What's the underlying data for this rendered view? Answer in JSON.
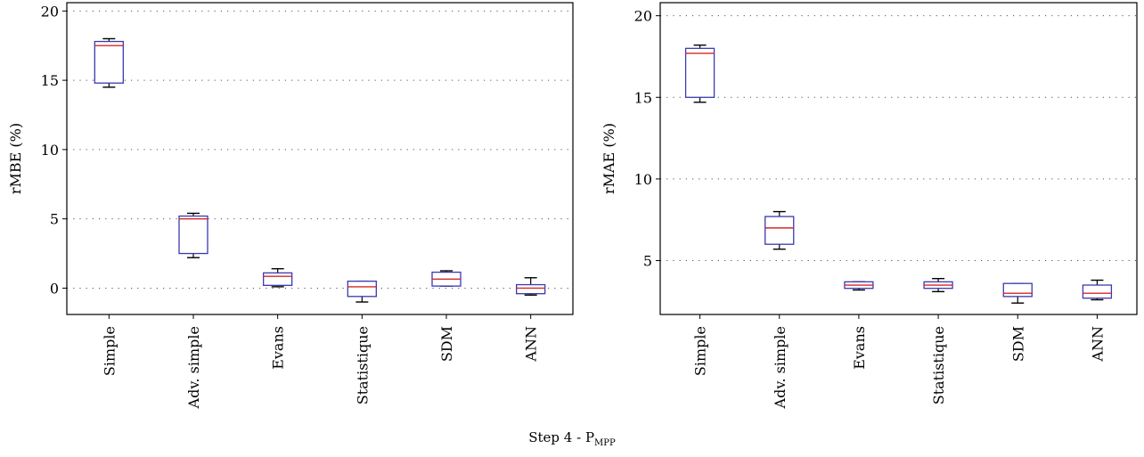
{
  "figure": {
    "caption_main": "Step 4 - P",
    "caption_sub": "MPP"
  },
  "chart_data": [
    {
      "type": "box",
      "title": "",
      "xlabel": "",
      "ylabel": "rMBE (%)",
      "ylim": [
        -1.9,
        20.6
      ],
      "yticks": [
        0,
        5,
        10,
        15,
        20
      ],
      "grid": "horizontal dotted",
      "categories": [
        "Simple",
        "Adv. simple",
        "Evans",
        "Statistique",
        "SDM",
        "ANN"
      ],
      "boxes": [
        {
          "whisker_low": 14.5,
          "q1": 14.8,
          "median": 17.5,
          "q3": 17.8,
          "whisker_high": 18.0
        },
        {
          "whisker_low": 2.2,
          "q1": 2.5,
          "median": 5.0,
          "q3": 5.2,
          "whisker_high": 5.4
        },
        {
          "whisker_low": 0.1,
          "q1": 0.2,
          "median": 0.85,
          "q3": 1.1,
          "whisker_high": 1.4
        },
        {
          "whisker_low": -1.0,
          "q1": -0.6,
          "median": 0.1,
          "q3": 0.5,
          "whisker_high": 0.5
        },
        {
          "whisker_low": 0.15,
          "q1": 0.15,
          "median": 0.65,
          "q3": 1.15,
          "whisker_high": 1.25
        },
        {
          "whisker_low": -0.5,
          "q1": -0.4,
          "median": 0.0,
          "q3": 0.25,
          "whisker_high": 0.75
        }
      ],
      "colors": {
        "box": "#3a3ab0",
        "median": "#d62728",
        "whisker": "#000000"
      }
    },
    {
      "type": "box",
      "title": "",
      "xlabel": "",
      "ylabel": "rMAE (%)",
      "ylim": [
        1.7,
        20.8
      ],
      "yticks": [
        5,
        10,
        15,
        20
      ],
      "grid": "horizontal dotted",
      "categories": [
        "Simple",
        "Adv. simple",
        "Evans",
        "Statistique",
        "SDM",
        "ANN"
      ],
      "boxes": [
        {
          "whisker_low": 14.7,
          "q1": 15.0,
          "median": 17.7,
          "q3": 18.0,
          "whisker_high": 18.2
        },
        {
          "whisker_low": 5.7,
          "q1": 6.0,
          "median": 7.0,
          "q3": 7.7,
          "whisker_high": 8.0
        },
        {
          "whisker_low": 3.2,
          "q1": 3.3,
          "median": 3.5,
          "q3": 3.7,
          "whisker_high": 3.7
        },
        {
          "whisker_low": 3.1,
          "q1": 3.3,
          "median": 3.5,
          "q3": 3.7,
          "whisker_high": 3.9
        },
        {
          "whisker_low": 2.4,
          "q1": 2.8,
          "median": 3.0,
          "q3": 3.6,
          "whisker_high": 3.6
        },
        {
          "whisker_low": 2.6,
          "q1": 2.7,
          "median": 3.0,
          "q3": 3.5,
          "whisker_high": 3.8
        }
      ],
      "colors": {
        "box": "#3a3ab0",
        "median": "#d62728",
        "whisker": "#000000"
      }
    }
  ]
}
